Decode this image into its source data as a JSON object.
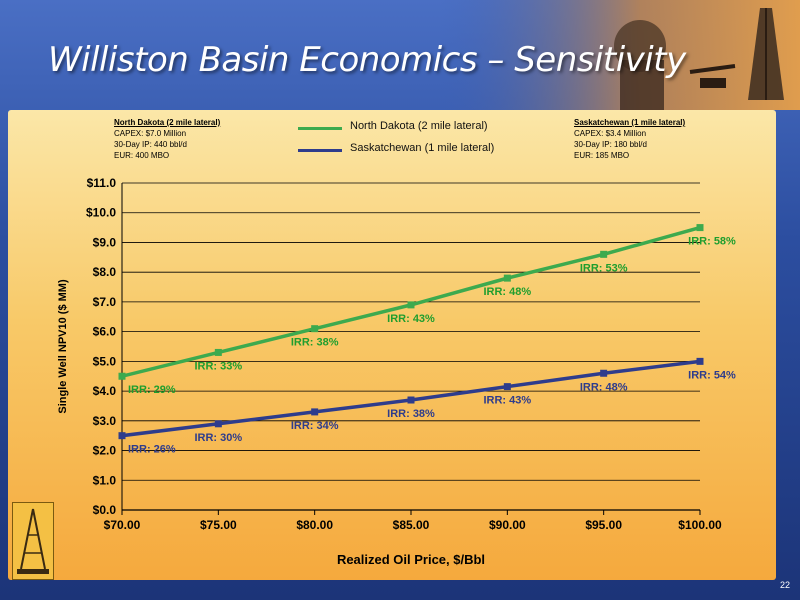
{
  "slide": {
    "title": "Williston Basin Economics – Sensitivity",
    "page_number": "22"
  },
  "info_boxes": {
    "nd": {
      "title": "North Dakota (2 mile lateral)",
      "capex": "CAPEX: $7.0 Million",
      "ip": "30-Day IP: 440 bbl/d",
      "eur": "EUR: 400 MBO"
    },
    "sk": {
      "title": "Saskatchewan (1 mile lateral)",
      "capex": "CAPEX: $3.4 Million",
      "ip": "30-Day IP: 180 bbl/d",
      "eur": "EUR: 185 MBO"
    }
  },
  "colors": {
    "north_dakota": "#3daa4e",
    "saskatchewan": "#2e3c8c",
    "nd_label": "#1f9e2e",
    "sk_label": "#2e3c8c"
  },
  "chart_data": {
    "type": "line",
    "title": "",
    "xlabel": "Realized Oil Price, $/Bbl",
    "ylabel": "Single Well NPV10 ($ MM)",
    "x": [
      70,
      75,
      80,
      85,
      90,
      95,
      100
    ],
    "x_tick_labels": [
      "$70.00",
      "$75.00",
      "$80.00",
      "$85.00",
      "$90.00",
      "$95.00",
      "$100.00"
    ],
    "ylim": [
      0,
      11
    ],
    "y_tick_labels": [
      "$0.0",
      "$1.0",
      "$2.0",
      "$3.0",
      "$4.0",
      "$5.0",
      "$6.0",
      "$7.0",
      "$8.0",
      "$9.0",
      "$10.0",
      "$11.0"
    ],
    "grid": true,
    "legend_position": "top-center",
    "series": [
      {
        "name": "North Dakota (2 mile lateral)",
        "values": [
          4.5,
          5.3,
          6.1,
          6.9,
          7.8,
          8.6,
          9.5
        ],
        "labels": [
          "IRR: 29%",
          "IRR: 33%",
          "IRR: 38%",
          "IRR: 43%",
          "IRR: 48%",
          "IRR: 53%",
          "IRR: 58%"
        ]
      },
      {
        "name": "Saskatchewan (1 mile lateral)",
        "values": [
          2.5,
          2.9,
          3.3,
          3.7,
          4.15,
          4.6,
          5.0
        ],
        "labels": [
          "IRR: 26%",
          "IRR: 30%",
          "IRR: 34%",
          "IRR: 38%",
          "IRR: 43%",
          "IRR: 48%",
          "IRR: 54%"
        ]
      }
    ]
  }
}
